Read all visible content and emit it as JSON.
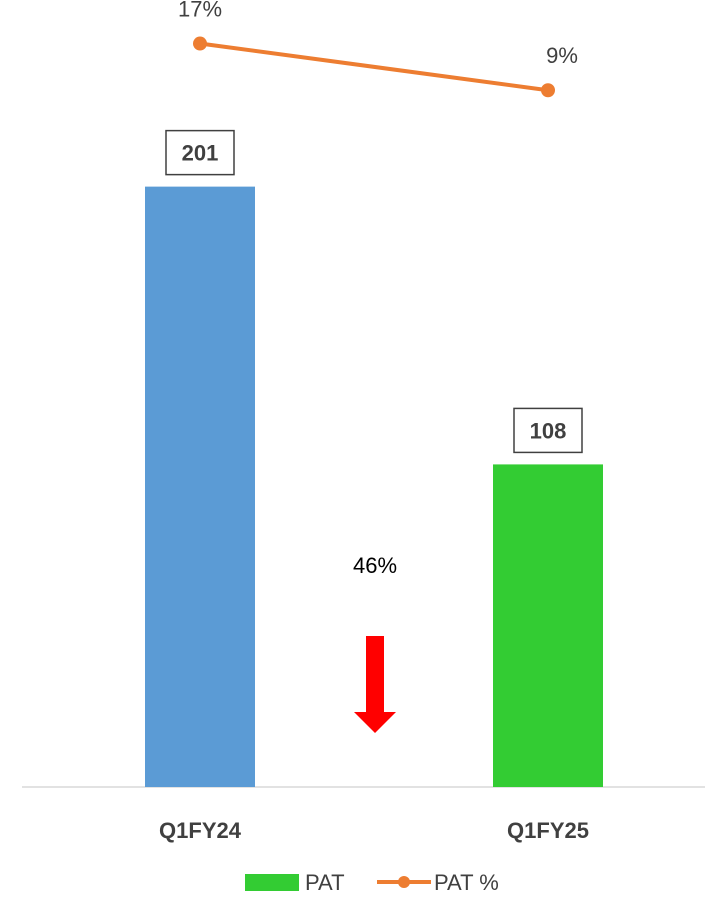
{
  "chart_data": {
    "type": "bar",
    "categories": [
      "Q1FY24",
      "Q1FY25"
    ],
    "series": [
      {
        "name": "PAT",
        "type": "bar",
        "values": [
          201,
          108
        ],
        "value_labels": [
          "201",
          "108"
        ],
        "colors": [
          "#5B9BD5",
          "#33CC33"
        ]
      },
      {
        "name": "PAT %",
        "type": "line",
        "values": [
          17,
          9
        ],
        "value_labels": [
          "17%",
          "9%"
        ],
        "color": "#ED7D31"
      }
    ],
    "ylim": [
      0,
      230
    ],
    "line_ylim": [
      -30,
      20
    ],
    "annotations": [
      {
        "text": "46%",
        "icon": "arrow-down-icon",
        "color": "#FF0000"
      }
    ],
    "legend": {
      "placement": "bottom",
      "entries": [
        "PAT",
        "PAT %"
      ]
    },
    "grid": false
  }
}
